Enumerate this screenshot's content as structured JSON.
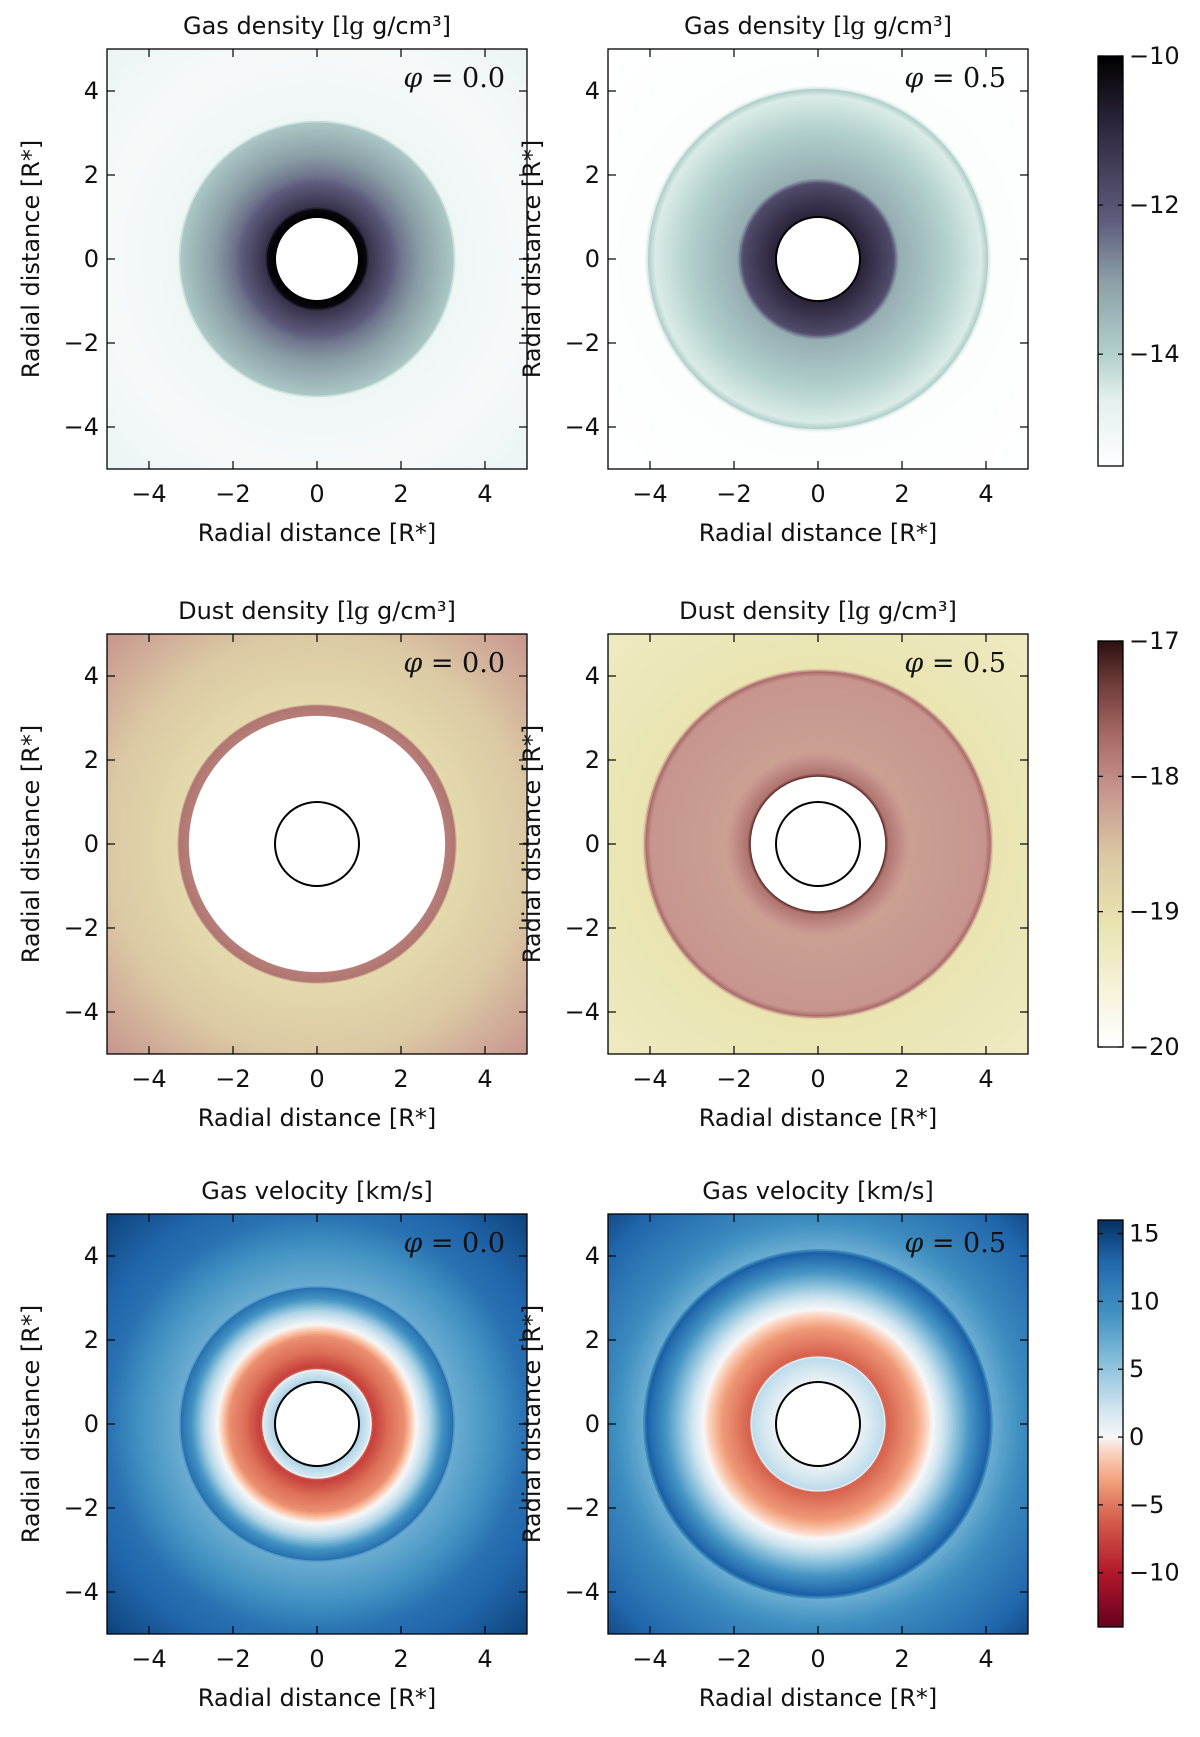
{
  "chart_data": [
    {
      "type": "heatmap",
      "row": 0,
      "col": 0,
      "title": "Gas density [lg g/cm³]",
      "xlabel": "Radial distance [R*]",
      "ylabel": "Radial distance [R*]",
      "xlim": [
        -5,
        5
      ],
      "ylim": [
        -5,
        5
      ],
      "xticks": [
        -4,
        -2,
        0,
        2,
        4
      ],
      "yticks": [
        -4,
        -2,
        0,
        2,
        4
      ],
      "phase_label": "φ = 0.0",
      "star_radius": 1.0,
      "profile": [
        {
          "r": 1.0,
          "value": -10.0
        },
        {
          "r": 1.2,
          "value": -10.2
        },
        {
          "r": 1.25,
          "value": -11.2
        },
        {
          "r": 2.0,
          "value": -12.5
        },
        {
          "r": 3.25,
          "value": -13.8
        },
        {
          "r": 3.35,
          "value": -15.0
        },
        {
          "r": 5.0,
          "value": -15.2
        },
        {
          "r": 7.1,
          "value": -14.9
        }
      ]
    },
    {
      "type": "heatmap",
      "row": 0,
      "col": 1,
      "title": "Gas density [lg g/cm³]",
      "xlabel": "Radial distance [R*]",
      "ylabel": "Radial distance [R*]",
      "xlim": [
        -5,
        5
      ],
      "ylim": [
        -5,
        5
      ],
      "xticks": [
        -4,
        -2,
        0,
        2,
        4
      ],
      "yticks": [
        -4,
        -2,
        0,
        2,
        4
      ],
      "phase_label": "φ = 0.5",
      "star_radius": 1.0,
      "profile": [
        {
          "r": 1.0,
          "value": -10.8
        },
        {
          "r": 1.8,
          "value": -11.8
        },
        {
          "r": 1.95,
          "value": -13.3
        },
        {
          "r": 3.9,
          "value": -14.5
        },
        {
          "r": 4.05,
          "value": -14.0
        },
        {
          "r": 4.15,
          "value": -15.4
        },
        {
          "r": 7.1,
          "value": -15.5
        }
      ]
    },
    {
      "type": "heatmap",
      "row": 1,
      "col": 0,
      "title": "Dust density [lg g/cm³]",
      "xlabel": "Radial distance [R*]",
      "ylabel": "Radial distance [R*]",
      "xlim": [
        -5,
        5
      ],
      "ylim": [
        -5,
        5
      ],
      "xticks": [
        -4,
        -2,
        0,
        2,
        4
      ],
      "yticks": [
        -4,
        -2,
        0,
        2,
        4
      ],
      "phase_label": "φ = 0.0",
      "star_radius": 1.0,
      "empty_region_radius": 3.05,
      "profile": [
        {
          "r": 3.05,
          "value": -17.9
        },
        {
          "r": 3.3,
          "value": -17.8
        },
        {
          "r": 3.35,
          "value": -18.9
        },
        {
          "r": 5.0,
          "value": -18.6
        },
        {
          "r": 7.1,
          "value": -18.1
        }
      ]
    },
    {
      "type": "heatmap",
      "row": 1,
      "col": 1,
      "title": "Dust density [lg g/cm³]",
      "xlabel": "Radial distance [R*]",
      "ylabel": "Radial distance [R*]",
      "xlim": [
        -5,
        5
      ],
      "ylim": [
        -5,
        5
      ],
      "xticks": [
        -4,
        -2,
        0,
        2,
        4
      ],
      "yticks": [
        -4,
        -2,
        0,
        2,
        4
      ],
      "phase_label": "φ = 0.5",
      "star_radius": 1.0,
      "empty_region_radius": 1.6,
      "profile": [
        {
          "r": 1.6,
          "value": -17.0
        },
        {
          "r": 1.7,
          "value": -17.8
        },
        {
          "r": 2.2,
          "value": -18.2
        },
        {
          "r": 4.0,
          "value": -18.1
        },
        {
          "r": 4.12,
          "value": -17.7
        },
        {
          "r": 4.2,
          "value": -19.1
        },
        {
          "r": 7.1,
          "value": -19.3
        }
      ]
    },
    {
      "type": "heatmap",
      "row": 2,
      "col": 0,
      "title": "Gas velocity [km/s]",
      "xlabel": "Radial distance [R*]",
      "ylabel": "Radial distance [R*]",
      "xlim": [
        -5,
        5
      ],
      "ylim": [
        -5,
        5
      ],
      "xticks": [
        -4,
        -2,
        0,
        2,
        4
      ],
      "yticks": [
        -4,
        -2,
        0,
        2,
        4
      ],
      "phase_label": "φ = 0.0",
      "star_radius": 1.0,
      "profile": [
        {
          "r": 1.0,
          "value": 4.0
        },
        {
          "r": 1.3,
          "value": 1.5
        },
        {
          "r": 1.35,
          "value": -8.0
        },
        {
          "r": 1.7,
          "value": -5.5
        },
        {
          "r": 2.1,
          "value": -4.0
        },
        {
          "r": 2.3,
          "value": -1.0
        },
        {
          "r": 2.7,
          "value": 3.5
        },
        {
          "r": 3.0,
          "value": 9.0
        },
        {
          "r": 3.25,
          "value": 12.0
        },
        {
          "r": 3.3,
          "value": 7.0
        },
        {
          "r": 4.2,
          "value": 9.0
        },
        {
          "r": 5.0,
          "value": 12.0
        },
        {
          "r": 7.1,
          "value": 15.0
        }
      ]
    },
    {
      "type": "heatmap",
      "row": 2,
      "col": 1,
      "title": "Gas velocity [km/s]",
      "xlabel": "Radial distance [R*]",
      "ylabel": "Radial distance [R*]",
      "xlim": [
        -5,
        5
      ],
      "ylim": [
        -5,
        5
      ],
      "xticks": [
        -4,
        -2,
        0,
        2,
        4
      ],
      "yticks": [
        -4,
        -2,
        0,
        2,
        4
      ],
      "phase_label": "φ = 0.5",
      "star_radius": 1.0,
      "profile": [
        {
          "r": 1.0,
          "value": 0.5
        },
        {
          "r": 1.6,
          "value": 3.0
        },
        {
          "r": 1.65,
          "value": -6.0
        },
        {
          "r": 2.3,
          "value": -3.5
        },
        {
          "r": 3.0,
          "value": 2.0
        },
        {
          "r": 3.6,
          "value": 8.5
        },
        {
          "r": 4.1,
          "value": 13.5
        },
        {
          "r": 4.2,
          "value": 7.0
        },
        {
          "r": 5.0,
          "value": 10.0
        },
        {
          "r": 7.1,
          "value": 14.5
        }
      ]
    }
  ],
  "colorbars": [
    {
      "name": "gas-density",
      "label": "lg g/cm³",
      "range": [
        -15.5,
        -10
      ],
      "ticks": [
        -10,
        -12,
        -14
      ],
      "stops": [
        {
          "v": -15.5,
          "color": "#ffffff"
        },
        {
          "v": -14.6,
          "color": "#e2f0ee"
        },
        {
          "v": -14.0,
          "color": "#b2d0cc"
        },
        {
          "v": -13.0,
          "color": "#8a9ea6"
        },
        {
          "v": -12.2,
          "color": "#5e5b7c"
        },
        {
          "v": -11.0,
          "color": "#302a42"
        },
        {
          "v": -10.0,
          "color": "#000000"
        }
      ]
    },
    {
      "name": "dust-density",
      "label": "lg g/cm³",
      "range": [
        -20,
        -17
      ],
      "ticks": [
        -17,
        -18,
        -19,
        -20
      ],
      "stops": [
        {
          "v": -20,
          "color": "#ffffff"
        },
        {
          "v": -19.6,
          "color": "#f7f3dc"
        },
        {
          "v": -19.1,
          "color": "#e9e4b0"
        },
        {
          "v": -18.6,
          "color": "#dbc9a4"
        },
        {
          "v": -18.1,
          "color": "#c7958e"
        },
        {
          "v": -17.7,
          "color": "#a86a66"
        },
        {
          "v": -17.3,
          "color": "#6b3a36"
        },
        {
          "v": -17,
          "color": "#2b1010"
        }
      ]
    },
    {
      "name": "gas-velocity",
      "label": "km/s",
      "range": [
        -14,
        16
      ],
      "ticks": [
        15,
        10,
        5,
        0,
        -5,
        -10
      ],
      "stops": [
        {
          "v": -14,
          "color": "#67001f"
        },
        {
          "v": -10,
          "color": "#b2182b"
        },
        {
          "v": -6,
          "color": "#d6604d"
        },
        {
          "v": -3,
          "color": "#f4a582"
        },
        {
          "v": -1,
          "color": "#fbd6c4"
        },
        {
          "v": 0,
          "color": "#f7f7f7"
        },
        {
          "v": 2,
          "color": "#d1e5f0"
        },
        {
          "v": 5,
          "color": "#92c5de"
        },
        {
          "v": 9,
          "color": "#4393c3"
        },
        {
          "v": 13,
          "color": "#2166ac"
        },
        {
          "v": 16,
          "color": "#053061"
        }
      ]
    }
  ]
}
